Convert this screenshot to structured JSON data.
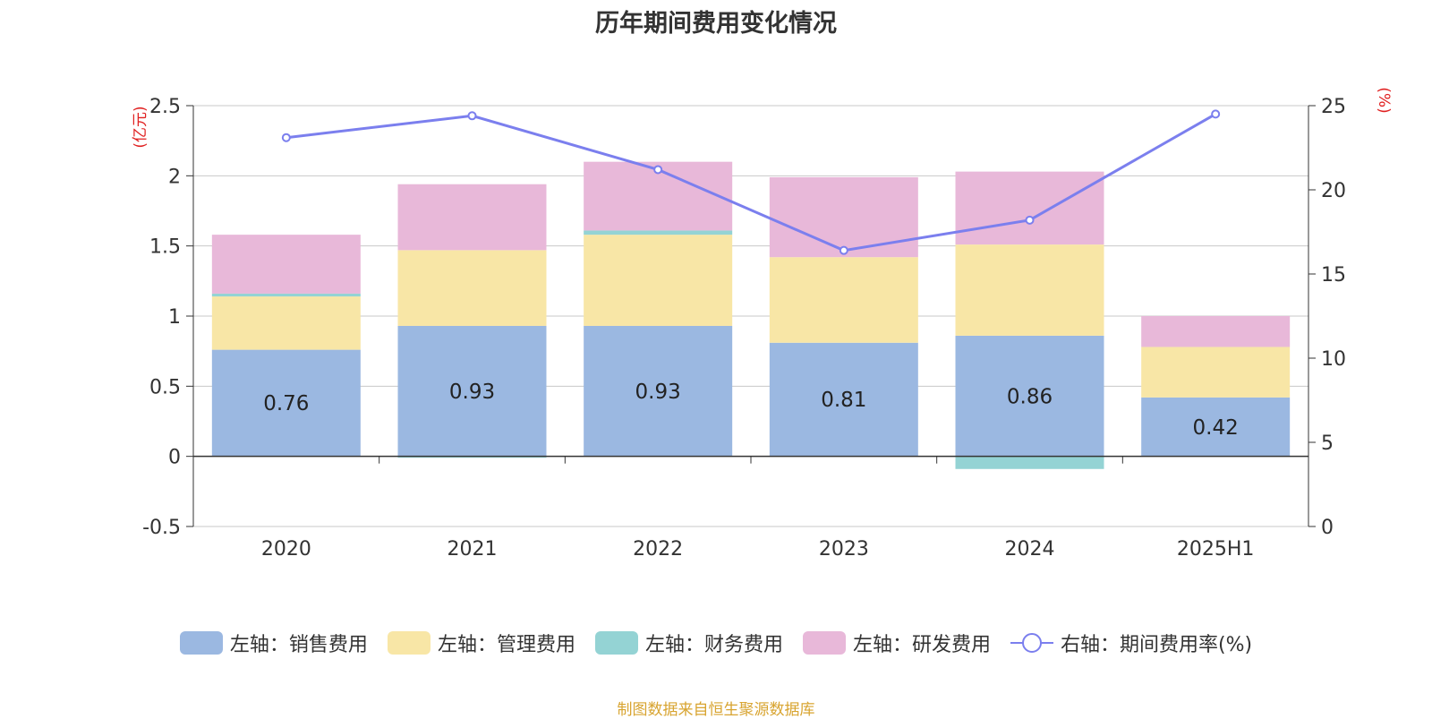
{
  "title": "历年期间费用变化情况",
  "source": "制图数据来自恒生聚源数据库",
  "chart_data": {
    "type": "bar",
    "stacked": true,
    "categories": [
      "2020",
      "2021",
      "2022",
      "2023",
      "2024",
      "2025H1"
    ],
    "left_axis": {
      "unit_label": "(亿元)",
      "ylim": [
        -0.5,
        2.5
      ],
      "ticks": [
        "-0.5",
        "0",
        "0.5",
        "1",
        "1.5",
        "2",
        "2.5"
      ]
    },
    "right_axis": {
      "unit_label": "(%)",
      "ylim": [
        0,
        25
      ],
      "ticks": [
        "0",
        "5",
        "10",
        "15",
        "20",
        "25"
      ]
    },
    "grid": true,
    "legend_position": "bottom",
    "series": [
      {
        "name": "左轴：销售费用",
        "axis": "left",
        "color": "#9bb8e1",
        "values": [
          0.76,
          0.93,
          0.93,
          0.81,
          0.86,
          0.42
        ],
        "labels": [
          "0.76",
          "0.93",
          "0.93",
          "0.81",
          "0.86",
          "0.42"
        ]
      },
      {
        "name": "左轴：管理费用",
        "axis": "left",
        "color": "#f8e6a6",
        "values": [
          0.38,
          0.54,
          0.65,
          0.61,
          0.65,
          0.36
        ]
      },
      {
        "name": "左轴：财务费用",
        "axis": "left",
        "color": "#94d3d4",
        "values": [
          0.02,
          -0.01,
          0.03,
          0.0,
          -0.09,
          0.0
        ]
      },
      {
        "name": "左轴：研发费用",
        "axis": "left",
        "color": "#e8b8d9",
        "values": [
          0.42,
          0.47,
          0.49,
          0.57,
          0.52,
          0.22
        ]
      },
      {
        "name": "右轴：期间费用率(%)",
        "axis": "right",
        "type": "line",
        "color": "#7b7fee",
        "values": [
          23.1,
          24.4,
          21.2,
          16.4,
          18.2,
          24.5
        ]
      }
    ]
  }
}
